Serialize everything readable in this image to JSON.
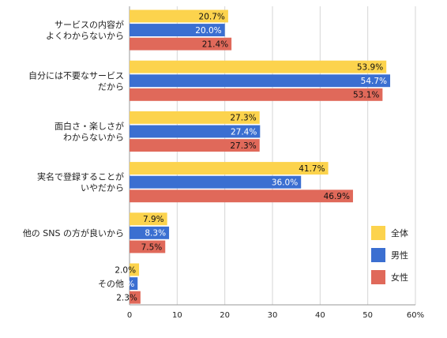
{
  "chart_data": {
    "type": "bar",
    "orientation": "horizontal",
    "categories": [
      [
        "サービスの内容が",
        "よくわからないから"
      ],
      [
        "自分には不要なサービス",
        "だから"
      ],
      [
        "面白さ・楽しさが",
        "わからないから"
      ],
      [
        "実名で登録することが",
        "いやだから"
      ],
      [
        "他の SNS の方が良いから"
      ],
      [
        "その他"
      ]
    ],
    "series": [
      {
        "name": "全体",
        "color": "#FCD34D",
        "values": [
          20.7,
          53.9,
          27.3,
          41.7,
          7.9,
          2.0
        ],
        "labels": [
          "20.7%",
          "53.9%",
          "27.3%",
          "41.7%",
          "7.9%",
          "2.0%"
        ]
      },
      {
        "name": "男性",
        "color": "#3B6FD1",
        "values": [
          20.0,
          54.7,
          27.4,
          36.0,
          8.3,
          1.7
        ],
        "labels": [
          "20.0%",
          "54.7%",
          "27.4%",
          "36.0%",
          "8.3%",
          "1.7%"
        ]
      },
      {
        "name": "女性",
        "color": "#E0695A",
        "values": [
          21.4,
          53.1,
          27.3,
          46.9,
          7.5,
          2.3
        ],
        "labels": [
          "21.4%",
          "53.1%",
          "27.3%",
          "46.9%",
          "7.5%",
          "2.3%"
        ]
      }
    ],
    "xlim": [
      0,
      60
    ],
    "ticks": [
      "0",
      "10",
      "20",
      "30",
      "40",
      "50",
      "60%"
    ],
    "grid": true,
    "legend": "right"
  }
}
